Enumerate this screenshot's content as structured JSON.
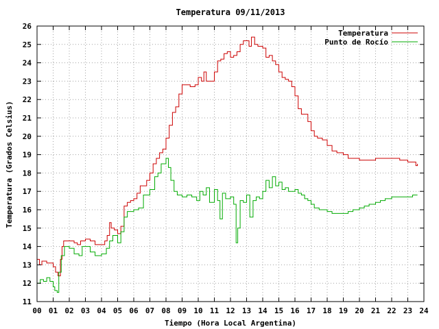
{
  "chart_data": {
    "type": "line",
    "title": "Temperatura 09/11/2013",
    "xlabel": "Tiempo (Hora Local Argentina)",
    "ylabel": "Temperatura (Grados Celsius)",
    "xlim": [
      0,
      24
    ],
    "ylim": [
      11,
      26
    ],
    "x_ticks": [
      0,
      1,
      2,
      3,
      4,
      5,
      6,
      7,
      8,
      9,
      10,
      11,
      12,
      13,
      14,
      15,
      16,
      17,
      18,
      19,
      20,
      21,
      22,
      23,
      24
    ],
    "x_tick_labels": [
      "00",
      "01",
      "02",
      "03",
      "04",
      "05",
      "06",
      "07",
      "08",
      "09",
      "10",
      "11",
      "12",
      "13",
      "14",
      "15",
      "16",
      "17",
      "18",
      "19",
      "20",
      "21",
      "22",
      "23",
      "24"
    ],
    "y_ticks": [
      11,
      12,
      13,
      14,
      15,
      16,
      17,
      18,
      19,
      20,
      21,
      22,
      23,
      24,
      25,
      26
    ],
    "y_tick_labels": [
      "11",
      "12",
      "13",
      "14",
      "15",
      "16",
      "17",
      "18",
      "19",
      "20",
      "21",
      "22",
      "23",
      "24",
      "25",
      "26"
    ],
    "grid": true,
    "legend_position": "top-right",
    "series": [
      {
        "name": "Temperatura",
        "color": "#cc0000",
        "points": [
          [
            0.0,
            13.3
          ],
          [
            0.15,
            13.0
          ],
          [
            0.3,
            13.2
          ],
          [
            0.6,
            13.1
          ],
          [
            0.9,
            13.1
          ],
          [
            1.0,
            12.9
          ],
          [
            1.15,
            12.6
          ],
          [
            1.3,
            12.4
          ],
          [
            1.45,
            13.3
          ],
          [
            1.55,
            14.0
          ],
          [
            1.65,
            14.3
          ],
          [
            2.0,
            14.3
          ],
          [
            2.3,
            14.2
          ],
          [
            2.5,
            14.1
          ],
          [
            2.7,
            14.3
          ],
          [
            3.0,
            14.4
          ],
          [
            3.3,
            14.3
          ],
          [
            3.6,
            14.1
          ],
          [
            4.0,
            14.1
          ],
          [
            4.2,
            14.3
          ],
          [
            4.35,
            14.6
          ],
          [
            4.5,
            15.3
          ],
          [
            4.6,
            15.0
          ],
          [
            4.8,
            14.9
          ],
          [
            5.0,
            14.7
          ],
          [
            5.2,
            15.1
          ],
          [
            5.4,
            16.2
          ],
          [
            5.6,
            16.4
          ],
          [
            5.8,
            16.5
          ],
          [
            6.0,
            16.6
          ],
          [
            6.2,
            16.9
          ],
          [
            6.4,
            17.3
          ],
          [
            6.6,
            17.3
          ],
          [
            6.8,
            17.6
          ],
          [
            7.0,
            18.0
          ],
          [
            7.2,
            18.5
          ],
          [
            7.4,
            18.8
          ],
          [
            7.6,
            19.1
          ],
          [
            7.8,
            19.3
          ],
          [
            8.0,
            19.9
          ],
          [
            8.2,
            20.6
          ],
          [
            8.4,
            21.3
          ],
          [
            8.6,
            21.6
          ],
          [
            8.8,
            22.3
          ],
          [
            9.0,
            22.8
          ],
          [
            9.2,
            22.8
          ],
          [
            9.5,
            22.7
          ],
          [
            9.8,
            22.8
          ],
          [
            10.0,
            23.2
          ],
          [
            10.2,
            23.0
          ],
          [
            10.35,
            23.5
          ],
          [
            10.5,
            23.0
          ],
          [
            10.8,
            23.0
          ],
          [
            11.0,
            23.5
          ],
          [
            11.2,
            24.1
          ],
          [
            11.4,
            24.2
          ],
          [
            11.6,
            24.5
          ],
          [
            11.8,
            24.6
          ],
          [
            12.0,
            24.3
          ],
          [
            12.2,
            24.4
          ],
          [
            12.4,
            24.6
          ],
          [
            12.6,
            25.0
          ],
          [
            12.8,
            25.2
          ],
          [
            13.0,
            25.2
          ],
          [
            13.15,
            24.9
          ],
          [
            13.3,
            25.4
          ],
          [
            13.5,
            25.0
          ],
          [
            13.7,
            24.9
          ],
          [
            14.0,
            24.8
          ],
          [
            14.2,
            24.3
          ],
          [
            14.4,
            24.4
          ],
          [
            14.6,
            24.1
          ],
          [
            14.8,
            23.9
          ],
          [
            15.0,
            23.5
          ],
          [
            15.2,
            23.2
          ],
          [
            15.4,
            23.1
          ],
          [
            15.6,
            23.0
          ],
          [
            15.8,
            22.7
          ],
          [
            16.0,
            22.2
          ],
          [
            16.2,
            21.5
          ],
          [
            16.4,
            21.2
          ],
          [
            16.6,
            21.2
          ],
          [
            16.8,
            20.8
          ],
          [
            17.0,
            20.3
          ],
          [
            17.2,
            20.0
          ],
          [
            17.4,
            19.9
          ],
          [
            17.7,
            19.8
          ],
          [
            18.0,
            19.5
          ],
          [
            18.3,
            19.2
          ],
          [
            18.6,
            19.1
          ],
          [
            19.0,
            19.0
          ],
          [
            19.3,
            18.8
          ],
          [
            19.6,
            18.8
          ],
          [
            20.0,
            18.7
          ],
          [
            20.3,
            18.7
          ],
          [
            20.6,
            18.7
          ],
          [
            21.0,
            18.8
          ],
          [
            21.5,
            18.8
          ],
          [
            22.0,
            18.8
          ],
          [
            22.5,
            18.7
          ],
          [
            23.0,
            18.6
          ],
          [
            23.3,
            18.6
          ],
          [
            23.5,
            18.4
          ],
          [
            23.6,
            18.5
          ]
        ]
      },
      {
        "name": "Punto de Rocío",
        "color": "#00aa00",
        "points": [
          [
            0.0,
            12.0
          ],
          [
            0.2,
            12.2
          ],
          [
            0.4,
            12.1
          ],
          [
            0.6,
            12.3
          ],
          [
            0.8,
            12.1
          ],
          [
            1.0,
            11.8
          ],
          [
            1.1,
            11.6
          ],
          [
            1.25,
            11.5
          ],
          [
            1.35,
            12.6
          ],
          [
            1.5,
            13.5
          ],
          [
            1.7,
            14.0
          ],
          [
            2.0,
            13.9
          ],
          [
            2.3,
            13.6
          ],
          [
            2.6,
            13.5
          ],
          [
            2.8,
            14.0
          ],
          [
            3.0,
            14.0
          ],
          [
            3.3,
            13.7
          ],
          [
            3.6,
            13.5
          ],
          [
            4.0,
            13.6
          ],
          [
            4.3,
            13.9
          ],
          [
            4.5,
            14.3
          ],
          [
            4.7,
            14.6
          ],
          [
            5.0,
            14.2
          ],
          [
            5.2,
            14.8
          ],
          [
            5.4,
            15.6
          ],
          [
            5.6,
            15.9
          ],
          [
            6.0,
            16.0
          ],
          [
            6.3,
            16.1
          ],
          [
            6.6,
            16.8
          ],
          [
            7.0,
            17.1
          ],
          [
            7.3,
            17.8
          ],
          [
            7.5,
            18.0
          ],
          [
            7.7,
            18.5
          ],
          [
            8.0,
            18.8
          ],
          [
            8.15,
            18.3
          ],
          [
            8.3,
            17.6
          ],
          [
            8.5,
            17.0
          ],
          [
            8.7,
            16.8
          ],
          [
            9.0,
            16.7
          ],
          [
            9.3,
            16.8
          ],
          [
            9.6,
            16.7
          ],
          [
            9.9,
            16.5
          ],
          [
            10.1,
            17.0
          ],
          [
            10.3,
            16.8
          ],
          [
            10.5,
            17.2
          ],
          [
            10.7,
            16.4
          ],
          [
            11.0,
            17.1
          ],
          [
            11.2,
            16.5
          ],
          [
            11.35,
            15.5
          ],
          [
            11.5,
            16.9
          ],
          [
            11.7,
            16.6
          ],
          [
            12.0,
            16.7
          ],
          [
            12.2,
            16.3
          ],
          [
            12.35,
            14.2
          ],
          [
            12.45,
            15.0
          ],
          [
            12.6,
            16.5
          ],
          [
            12.8,
            16.4
          ],
          [
            13.0,
            16.8
          ],
          [
            13.2,
            15.6
          ],
          [
            13.4,
            16.5
          ],
          [
            13.6,
            16.7
          ],
          [
            13.8,
            16.6
          ],
          [
            14.0,
            17.0
          ],
          [
            14.2,
            17.6
          ],
          [
            14.4,
            17.2
          ],
          [
            14.6,
            17.8
          ],
          [
            14.8,
            17.3
          ],
          [
            15.0,
            17.5
          ],
          [
            15.2,
            17.1
          ],
          [
            15.4,
            17.2
          ],
          [
            15.6,
            17.0
          ],
          [
            15.8,
            17.0
          ],
          [
            16.0,
            17.1
          ],
          [
            16.2,
            16.9
          ],
          [
            16.4,
            16.8
          ],
          [
            16.6,
            16.6
          ],
          [
            16.8,
            16.5
          ],
          [
            17.0,
            16.3
          ],
          [
            17.2,
            16.1
          ],
          [
            17.5,
            16.0
          ],
          [
            17.8,
            16.0
          ],
          [
            18.0,
            15.9
          ],
          [
            18.3,
            15.8
          ],
          [
            18.6,
            15.8
          ],
          [
            19.0,
            15.8
          ],
          [
            19.3,
            15.9
          ],
          [
            19.6,
            16.0
          ],
          [
            20.0,
            16.1
          ],
          [
            20.3,
            16.2
          ],
          [
            20.6,
            16.3
          ],
          [
            21.0,
            16.4
          ],
          [
            21.3,
            16.5
          ],
          [
            21.6,
            16.6
          ],
          [
            22.0,
            16.7
          ],
          [
            22.5,
            16.7
          ],
          [
            23.0,
            16.7
          ],
          [
            23.3,
            16.8
          ],
          [
            23.6,
            16.8
          ]
        ]
      }
    ]
  }
}
